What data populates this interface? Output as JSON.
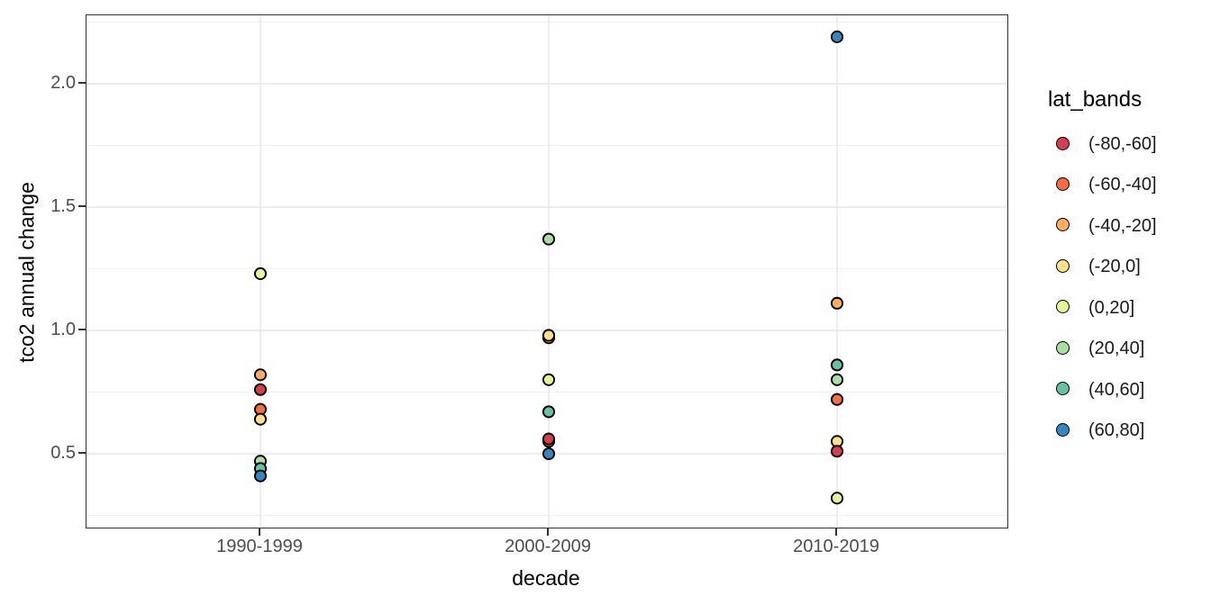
{
  "chart_data": {
    "type": "scatter",
    "title": "",
    "xlabel": "decade",
    "ylabel": "tco2 annual change",
    "legend_title": "lat_bands",
    "legend_position": "right",
    "categories": [
      "1990-1999",
      "2000-2009",
      "2010-2019"
    ],
    "y_ticks": {
      "labels": [
        "0.5",
        "1.0",
        "1.5",
        "2.0"
      ],
      "values": [
        0.5,
        1.0,
        1.5,
        2.0
      ]
    },
    "ylim": [
      0.2,
      2.28
    ],
    "grid": "major-and-minor",
    "series": [
      {
        "name": "(-80,-60]",
        "color": "#d53e4f",
        "values": [
          0.76,
          0.56,
          0.51
        ]
      },
      {
        "name": "(-60,-40]",
        "color": "#f46d43",
        "values": [
          0.68,
          0.55,
          0.72
        ]
      },
      {
        "name": "(-40,-20]",
        "color": "#fdae61",
        "values": [
          0.82,
          0.97,
          1.11
        ]
      },
      {
        "name": "(-20,0]",
        "color": "#fee08b",
        "values": [
          0.64,
          0.98,
          0.55
        ]
      },
      {
        "name": "(0,20]",
        "color": "#e6f598",
        "values": [
          1.23,
          0.8,
          0.32
        ]
      },
      {
        "name": "(20,40]",
        "color": "#abdda4",
        "values": [
          0.47,
          1.37,
          0.8
        ]
      },
      {
        "name": "(40,60]",
        "color": "#66c2a5",
        "values": [
          0.44,
          0.67,
          0.86
        ]
      },
      {
        "name": "(60,80]",
        "color": "#3288bd",
        "values": [
          0.41,
          0.5,
          2.19
        ]
      }
    ],
    "point_style": {
      "shape": "filled-circle-black-outline",
      "outline": "#000000"
    }
  },
  "colors": {
    "background": "#ffffff",
    "panel_border": "#333333",
    "grid_major": "#e6e6e6",
    "grid_minor": "#f2f2f2",
    "tick_label": "#4d4d4d",
    "axis_title": "#000000",
    "legend_text": "#1a1a1a",
    "tick_mark": "#333333"
  }
}
